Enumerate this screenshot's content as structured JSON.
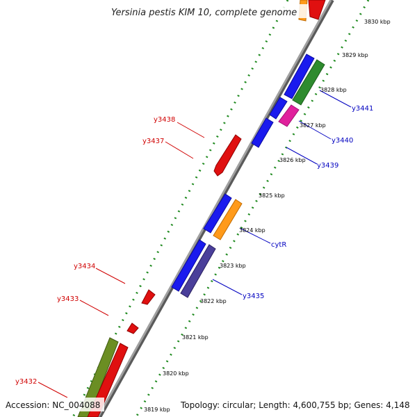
{
  "title": "Yersinia pestis KIM 10, complete genome",
  "accession": "Accession: NC_004088",
  "summary": "Topology: circular; Length: 4,600,755 bp; Genes: 4,148",
  "ticks": [
    "3819 kbp",
    "3820 kbp",
    "3821 kbp",
    "3822 kbp",
    "3823 kbp",
    "3824 kbp",
    "3825 kbp",
    "3826 kbp",
    "3827 kbp",
    "3828 kbp",
    "3829 kbp",
    "3830 kbp"
  ],
  "genes_reverse": [
    "y3438",
    "y3437",
    "y3434",
    "y3433",
    "y3432"
  ],
  "genes_forward": [
    "y3441",
    "y3440",
    "y3439",
    "cytR",
    "y3435"
  ],
  "colors": {
    "backbone": "#8c8c8c",
    "tick_dots": "#1f8a1f",
    "reverse_label": "#d00000",
    "forward_label": "#0000c0",
    "red_gene": "#e01010",
    "blue_gene": "#1a1aee",
    "green_gene": "#2e8b2e",
    "magenta_gene": "#e0209c",
    "orange_gene": "#ff9a1a",
    "slate_gene": "#4a3f9a",
    "olive_gene": "#6b8e23"
  }
}
